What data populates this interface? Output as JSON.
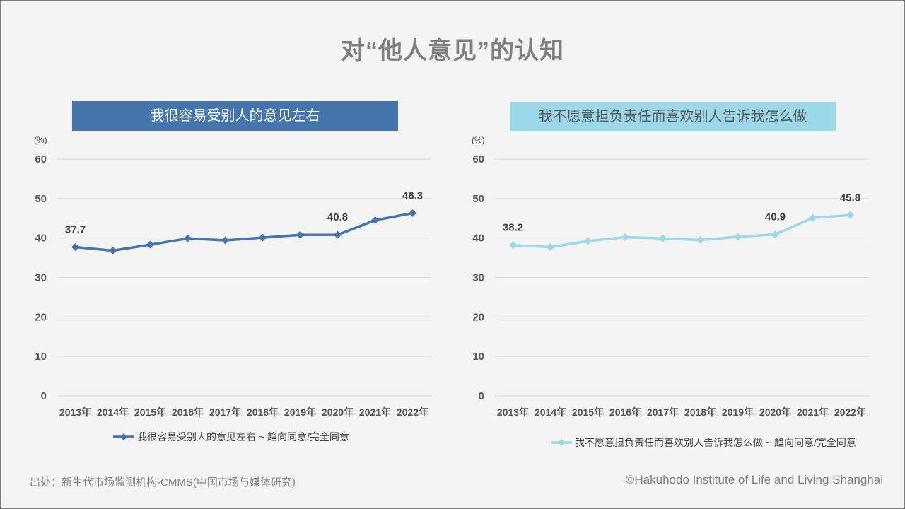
{
  "page": {
    "title": "对“他人意见”的认知",
    "source": "出处：新生代市场监测机构-CMMS(中国市场与媒体研究)",
    "copyright": "©Hakuhodo Institute of Life and Living Shanghai"
  },
  "colors": {
    "left_series": "#4475ad",
    "right_series": "#9bd8ea",
    "axis_text": "#555555",
    "grid": "#d9d9d9"
  },
  "chart_data": [
    {
      "type": "line",
      "banner": "我很容易受别人的意见左右",
      "unit_label": "(%)",
      "categories": [
        "2013年",
        "2014年",
        "2015年",
        "2016年",
        "2017年",
        "2018年",
        "2019年",
        "2020年",
        "2021年",
        "2022年"
      ],
      "series": [
        {
          "name": "我很容易受别人的意见左右 ~ 趋向同意/完全同意",
          "values": [
            37.7,
            36.8,
            38.3,
            39.9,
            39.4,
            40.1,
            40.8,
            40.8,
            44.5,
            46.3
          ]
        }
      ],
      "data_labels": [
        {
          "index": 0,
          "text": "37.7"
        },
        {
          "index": 7,
          "text": "40.8"
        },
        {
          "index": 9,
          "text": "46.3"
        }
      ],
      "yticks": [
        "0",
        "10",
        "20",
        "30",
        "40",
        "50",
        "60"
      ],
      "ylim": [
        0,
        60
      ],
      "grid": true,
      "legend": "bottom"
    },
    {
      "type": "line",
      "banner": "我不愿意担负责任而喜欢别人告诉我怎么做",
      "unit_label": "(%)",
      "categories": [
        "2013年",
        "2014年",
        "2015年",
        "2016年",
        "2017年",
        "2018年",
        "2019年",
        "2020年",
        "2021年",
        "2022年"
      ],
      "series": [
        {
          "name": "我不愿意担负责任而喜欢别人告诉我怎么做 ~ 趋向同意/完全同意",
          "values": [
            38.2,
            37.7,
            39.2,
            40.2,
            39.9,
            39.5,
            40.3,
            40.9,
            45.1,
            45.8
          ]
        }
      ],
      "data_labels": [
        {
          "index": 0,
          "text": "38.2"
        },
        {
          "index": 7,
          "text": "40.9"
        },
        {
          "index": 9,
          "text": "45.8"
        }
      ],
      "yticks": [
        "0",
        "10",
        "20",
        "30",
        "40",
        "50",
        "60"
      ],
      "ylim": [
        0,
        60
      ],
      "grid": true,
      "legend": "bottom"
    }
  ]
}
